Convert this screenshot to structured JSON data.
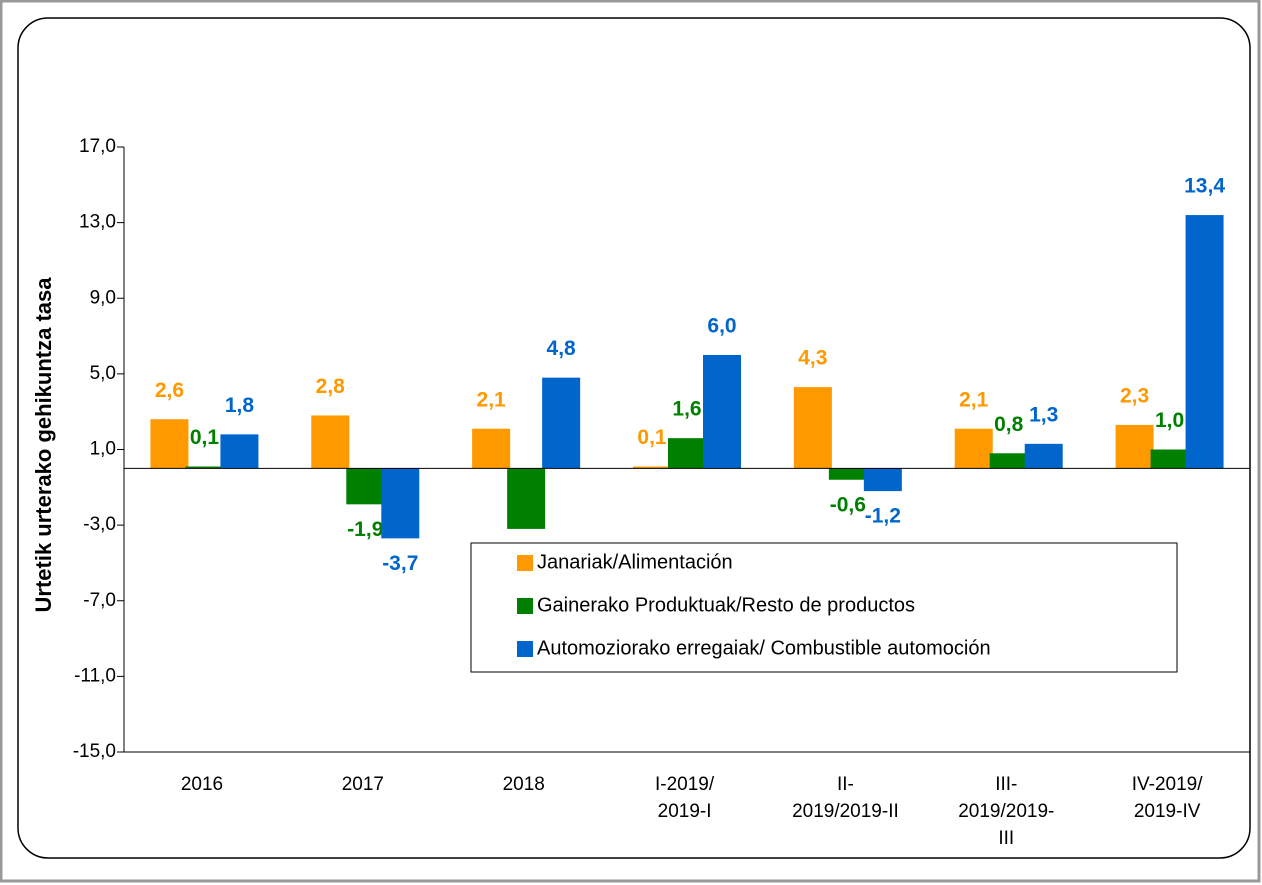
{
  "chart_data": {
    "type": "bar",
    "y_axis_label": "Urtetik urterako gehikuntza tasa",
    "categories": [
      "2016",
      "2017",
      "2018",
      "I-2019/\n2019-I",
      "II-\n2019/2019-II",
      "III-\n2019/2019-\nIII",
      "IV-2019/\n2019-IV"
    ],
    "series": [
      {
        "name": "Janariak/Alimentación",
        "color": "#ff9900",
        "values": [
          2.6,
          2.8,
          2.1,
          0.1,
          4.3,
          2.1,
          2.3
        ],
        "value_labels": [
          "2,6",
          "2,8",
          "2,1",
          "0,1",
          "4,3",
          "2,1",
          "2,3"
        ]
      },
      {
        "name": "Gainerako Produktuak/Resto de productos",
        "color": "#008000",
        "values": [
          0.1,
          -1.9,
          -3.2,
          1.6,
          -0.6,
          0.8,
          1.0
        ],
        "value_labels": [
          "0,1",
          "-1,9",
          null,
          "1,6",
          "-0,6",
          "0,8",
          "1,0"
        ]
      },
      {
        "name": "Automoziorako erregaiak/ Combustible automoción",
        "color": "#0066cc",
        "values": [
          1.8,
          -3.7,
          4.8,
          6.0,
          -1.2,
          1.3,
          13.4
        ],
        "value_labels": [
          "1,8",
          "-3,7",
          "4,8",
          "6,0",
          "-1,2",
          "1,3",
          "13,4"
        ]
      }
    ],
    "ylim": [
      -15,
      17
    ],
    "yticks": [
      {
        "value": -15,
        "label": "-15,0"
      },
      {
        "value": -11,
        "label": "-11,0"
      },
      {
        "value": -7,
        "label": "-7,0"
      },
      {
        "value": -3,
        "label": "-3,0"
      },
      {
        "value": 1,
        "label": "1,0"
      },
      {
        "value": 5,
        "label": "5,0"
      },
      {
        "value": 9,
        "label": "9,0"
      },
      {
        "value": 13,
        "label": "13,0"
      },
      {
        "value": 17,
        "label": "17,0"
      }
    ],
    "legend": "lower right"
  }
}
